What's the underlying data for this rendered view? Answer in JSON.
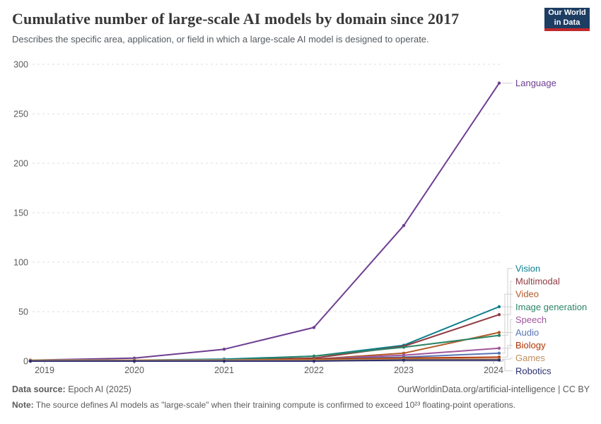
{
  "header": {
    "title": "Cumulative number of large-scale AI models by domain since 2017",
    "subtitle": "Describes the specific area, application, or field in which a large-scale AI model is designed to operate."
  },
  "logo": {
    "line1": "Our World",
    "line2": "in Data",
    "bg_color": "#1d3d63",
    "bar_color": "#c0282d"
  },
  "footer": {
    "datasource_label": "Data source:",
    "datasource_value": " Epoch AI (2025)",
    "link": "OurWorldinData.org/artificial-intelligence | CC BY",
    "note_label": "Note:",
    "note_text": " The source defines AI models as \"large-scale\" when their training compute is confirmed to exceed 10²³ floating-point operations."
  },
  "chart_data": {
    "type": "line",
    "title": "Cumulative number of large-scale AI models by domain since 2017",
    "categories": [
      "2019",
      "2020",
      "2021",
      "2022",
      "2023",
      "2024"
    ],
    "y_ticks": [
      0,
      50,
      100,
      150,
      200,
      250,
      300
    ],
    "ylim": [
      0,
      300
    ],
    "grid": "horizontal-dashed",
    "legend_position": "right-end-labels",
    "series": [
      {
        "name": "Language",
        "color": "#6D3E91",
        "values": [
          1,
          3,
          12,
          34,
          137,
          281
        ]
      },
      {
        "name": "Vision",
        "color": "#0b7f8c",
        "values": [
          1,
          1,
          2,
          5,
          16,
          55
        ]
      },
      {
        "name": "Multimodal",
        "color": "#8f3a42",
        "values": [
          0,
          0,
          1,
          3,
          15,
          47
        ]
      },
      {
        "name": "Video",
        "color": "#b25a27",
        "values": [
          0,
          0,
          1,
          2,
          8,
          29
        ]
      },
      {
        "name": "Image generation",
        "color": "#2C8465",
        "values": [
          0,
          0,
          1,
          5,
          14,
          26
        ]
      },
      {
        "name": "Speech",
        "color": "#A2559C",
        "values": [
          0,
          1,
          1,
          2,
          6,
          13
        ]
      },
      {
        "name": "Audio",
        "color": "#5876B5",
        "values": [
          0,
          0,
          1,
          2,
          4,
          8
        ]
      },
      {
        "name": "Biology",
        "color": "#B13507",
        "values": [
          0,
          0,
          1,
          2,
          3,
          4
        ]
      },
      {
        "name": "Games",
        "color": "#BC8E5A",
        "values": [
          1,
          1,
          1,
          1,
          2,
          2
        ]
      },
      {
        "name": "Robotics",
        "color": "#2A2E6E",
        "values": [
          0,
          0,
          0,
          0,
          1,
          1
        ]
      }
    ]
  }
}
